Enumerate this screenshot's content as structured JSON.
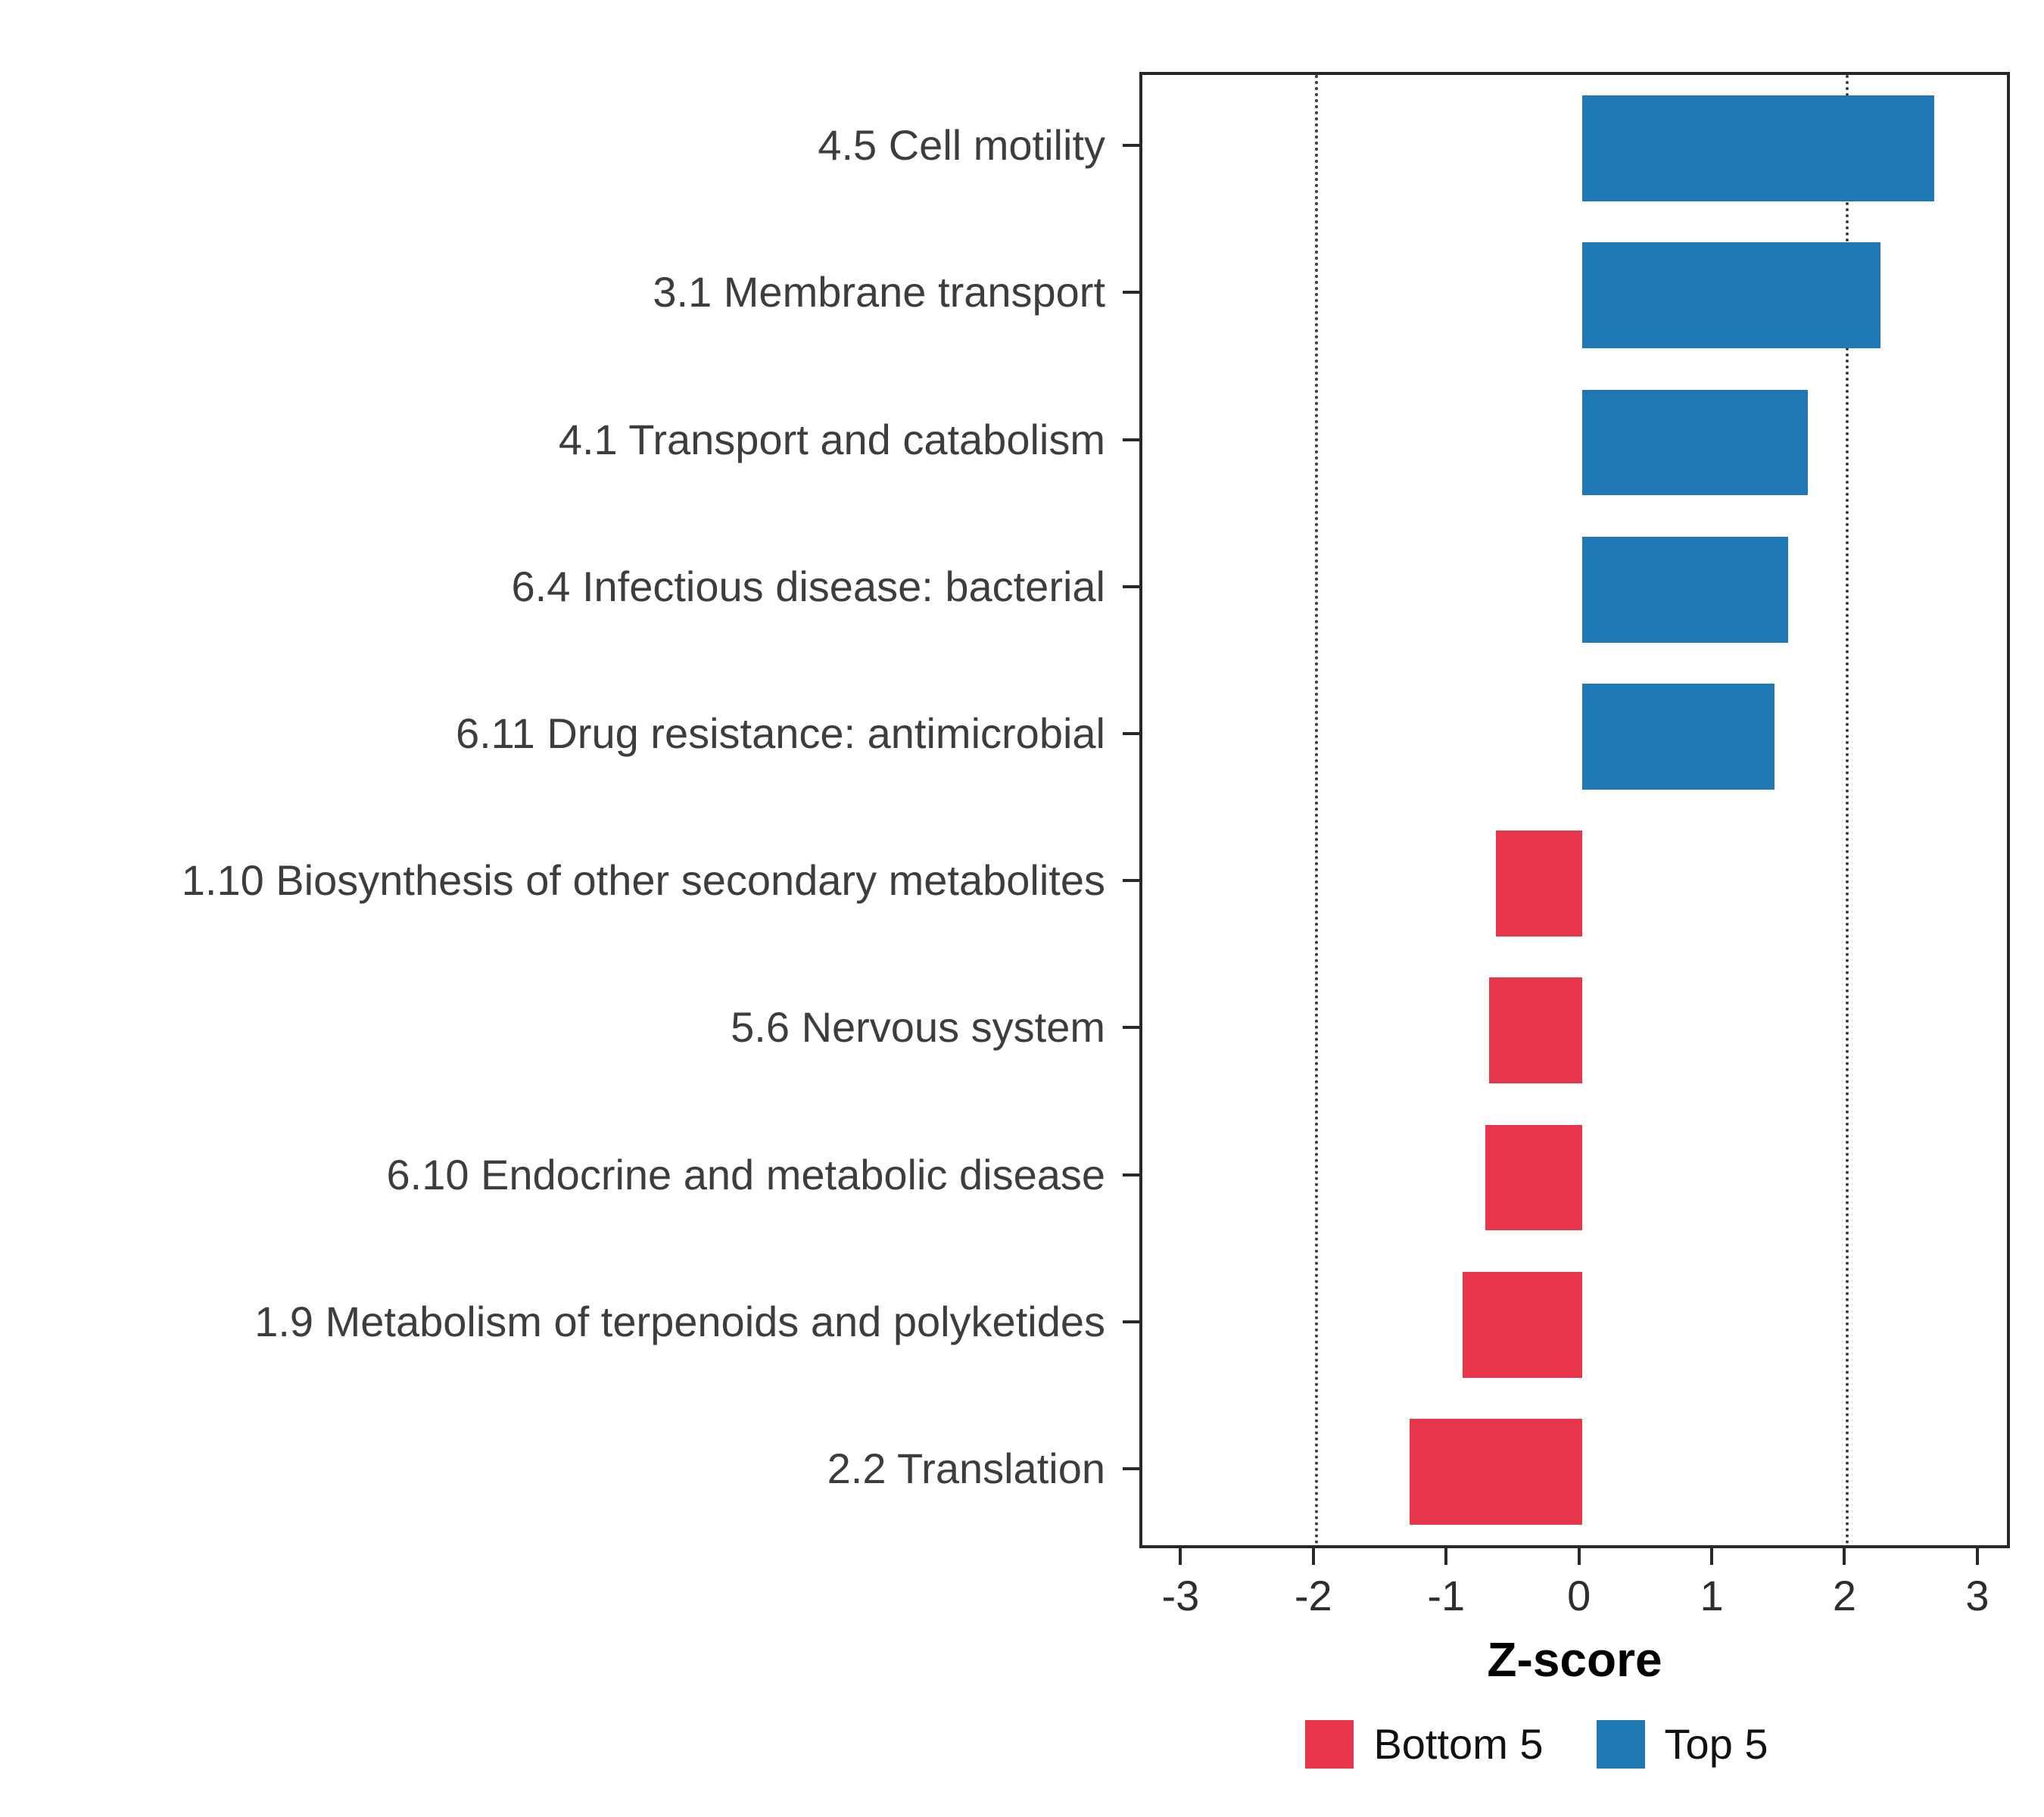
{
  "chart_data": {
    "type": "bar",
    "orientation": "horizontal",
    "title": "",
    "xlabel": "Z-score",
    "categories": [
      "4.5 Cell motility",
      "3.1 Membrane transport",
      "4.1 Transport and catabolism",
      "6.4 Infectious disease: bacterial",
      "6.11 Drug resistance: antimicrobial",
      "1.10 Biosynthesis of other secondary metabolites",
      "5.6 Nervous system",
      "6.10 Endocrine and metabolic disease",
      "1.9 Metabolism of terpenoids and polyketides",
      "2.2 Translation"
    ],
    "values": [
      2.65,
      2.25,
      1.7,
      1.55,
      1.45,
      -0.65,
      -0.7,
      -0.73,
      -0.9,
      -1.3
    ],
    "groups": [
      "Top 5",
      "Top 5",
      "Top 5",
      "Top 5",
      "Top 5",
      "Bottom 5",
      "Bottom 5",
      "Bottom 5",
      "Bottom 5",
      "Bottom 5"
    ],
    "colors": {
      "Top 5": "#1F78B4",
      "Bottom 5": "#E8374A"
    },
    "x_ticks": [
      -3,
      -2,
      -1,
      0,
      1,
      2,
      3
    ],
    "xlim": [
      -3.31,
      3.2
    ],
    "reference_lines": [
      -2,
      2
    ],
    "grid": "dotted reference lines at -2 and 2 only",
    "legend_position": "bottom",
    "legend": [
      {
        "label": "Bottom 5",
        "color": "#E8374A"
      },
      {
        "label": "Top 5",
        "color": "#1F78B4"
      }
    ]
  }
}
